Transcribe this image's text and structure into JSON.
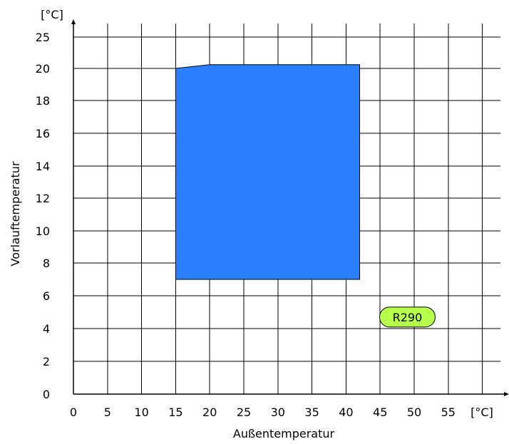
{
  "chart_data": {
    "type": "area",
    "xlabel": "Außentemperatur",
    "ylabel": "Vorlauftemperatur",
    "x_unit": "[°C]",
    "y_unit": "[°C]",
    "x_ticks": [
      0,
      5,
      10,
      15,
      20,
      25,
      30,
      35,
      40,
      45,
      50,
      55
    ],
    "y_ticks": [
      0,
      2,
      4,
      6,
      8,
      10,
      12,
      14,
      16,
      18,
      20,
      25
    ],
    "grid": true,
    "series": [
      {
        "color": "#2a7ffe",
        "points": [
          {
            "x": 15,
            "y": 7
          },
          {
            "x": 15,
            "y": 20
          },
          {
            "x": 20,
            "y": 20.6
          },
          {
            "x": 42,
            "y": 20.6
          },
          {
            "x": 42,
            "y": 7
          }
        ]
      }
    ],
    "annotations": [
      {
        "text": "R290",
        "x": 49,
        "y": 4.7,
        "background": "#b6ff4a"
      }
    ]
  }
}
